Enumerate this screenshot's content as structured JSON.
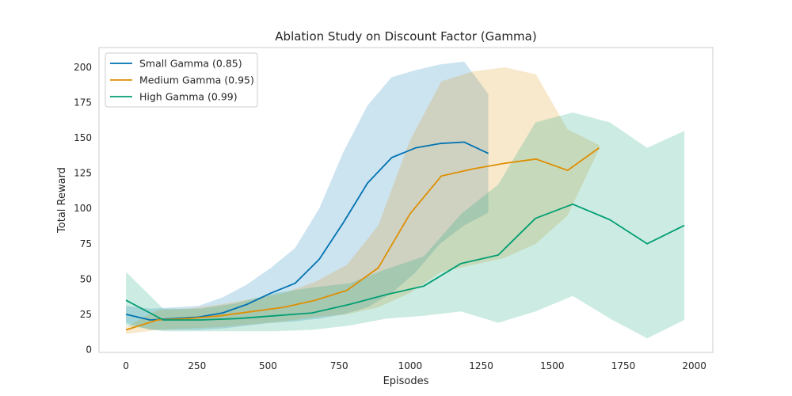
{
  "chart_data": {
    "type": "line",
    "title": "Ablation Study on Discount Factor (Gamma)",
    "xlabel": "Episodes",
    "ylabel": "Total Reward",
    "xlim": [
      -95,
      2065
    ],
    "ylim": [
      -2,
      214
    ],
    "xticks": [
      0,
      250,
      500,
      750,
      1000,
      1250,
      1500,
      1750,
      2000
    ],
    "yticks": [
      0,
      25,
      50,
      75,
      100,
      125,
      150,
      175,
      200
    ],
    "grid": false,
    "legend_position": "top-left",
    "series": [
      {
        "name": "Small Gamma (0.85)",
        "color": "#0173b2",
        "x": [
          0,
          85,
          170,
          255,
          340,
          425,
          510,
          595,
          680,
          765,
          850,
          935,
          1020,
          1105,
          1190,
          1275
        ],
        "y": [
          25,
          21,
          22,
          23,
          26,
          32,
          40,
          47,
          64,
          90,
          118,
          136,
          143,
          146,
          147,
          139
        ],
        "lower": [
          19,
          14,
          14,
          14,
          15,
          17,
          19,
          20,
          22,
          25,
          30,
          40,
          55,
          75,
          88,
          97
        ],
        "upper": [
          31,
          29,
          30,
          31,
          37,
          46,
          58,
          72,
          100,
          140,
          173,
          193,
          198,
          202,
          204,
          181
        ]
      },
      {
        "name": "Medium Gamma (0.95)",
        "color": "#de8f05",
        "x": [
          0,
          111,
          222,
          333,
          444,
          555,
          666,
          777,
          888,
          999,
          1110,
          1221,
          1332,
          1443,
          1554,
          1665
        ],
        "y": [
          14,
          21,
          22,
          24,
          27,
          30,
          35,
          42,
          58,
          96,
          123,
          128,
          132,
          135,
          127,
          143
        ],
        "lower": [
          11,
          14,
          15,
          16,
          18,
          20,
          23,
          25,
          30,
          40,
          55,
          60,
          65,
          75,
          95,
          142
        ],
        "upper": [
          16,
          28,
          29,
          32,
          36,
          40,
          48,
          60,
          88,
          148,
          190,
          197,
          200,
          195,
          156,
          145
        ]
      },
      {
        "name": "High Gamma (0.99)",
        "color": "#029e73",
        "x": [
          0,
          131,
          262,
          393,
          524,
          655,
          786,
          917,
          1048,
          1179,
          1310,
          1441,
          1572,
          1703,
          1834,
          1965
        ],
        "y": [
          35,
          21,
          21,
          22,
          24,
          26,
          32,
          39,
          45,
          61,
          67,
          93,
          103,
          92,
          75,
          88
        ],
        "lower": [
          17,
          13,
          13,
          13,
          13,
          14,
          17,
          22,
          24,
          27,
          19,
          27,
          38,
          22,
          8,
          21
        ],
        "upper": [
          55,
          29,
          29,
          33,
          40,
          44,
          47,
          57,
          66,
          96,
          117,
          161,
          168,
          161,
          143,
          155
        ]
      }
    ]
  }
}
